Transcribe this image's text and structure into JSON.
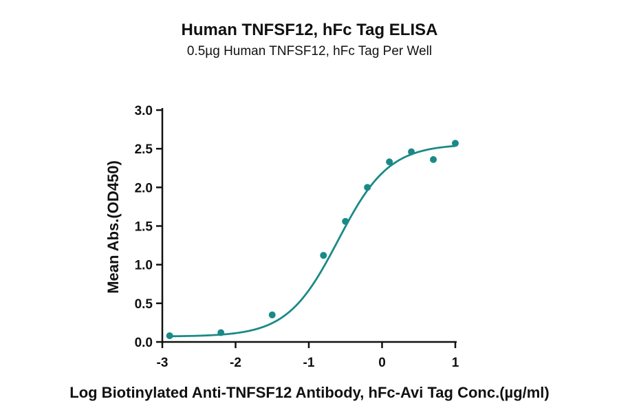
{
  "chart_data": {
    "type": "scatter",
    "title": "Human TNFSF12, hFc Tag ELISA",
    "subtitle": "0.5µg Human TNFSF12, hFc Tag Per Well",
    "xlabel": "Log Biotinylated Anti-TNFSF12 Antibody, hFc-Avi Tag Conc.(µg/ml)",
    "ylabel": "Mean Abs.(OD450)",
    "xlim": [
      -3,
      1
    ],
    "ylim": [
      0,
      3.0
    ],
    "xticks": [
      "-3",
      "-2",
      "-1",
      "0",
      "1"
    ],
    "yticks": [
      "0.0",
      "0.5",
      "1.0",
      "1.5",
      "2.0",
      "2.5",
      "3.0"
    ],
    "color": "#1a8a87",
    "fit": "four-parameter logistic curve",
    "series": [
      {
        "x": [
          -2.9,
          -2.2,
          -1.5,
          -0.8,
          -0.5,
          -0.2,
          0.1,
          0.4,
          0.7,
          1.0
        ],
        "y": [
          0.08,
          0.12,
          0.35,
          1.12,
          1.56,
          2.0,
          2.33,
          2.46,
          2.36,
          2.57
        ]
      }
    ]
  }
}
